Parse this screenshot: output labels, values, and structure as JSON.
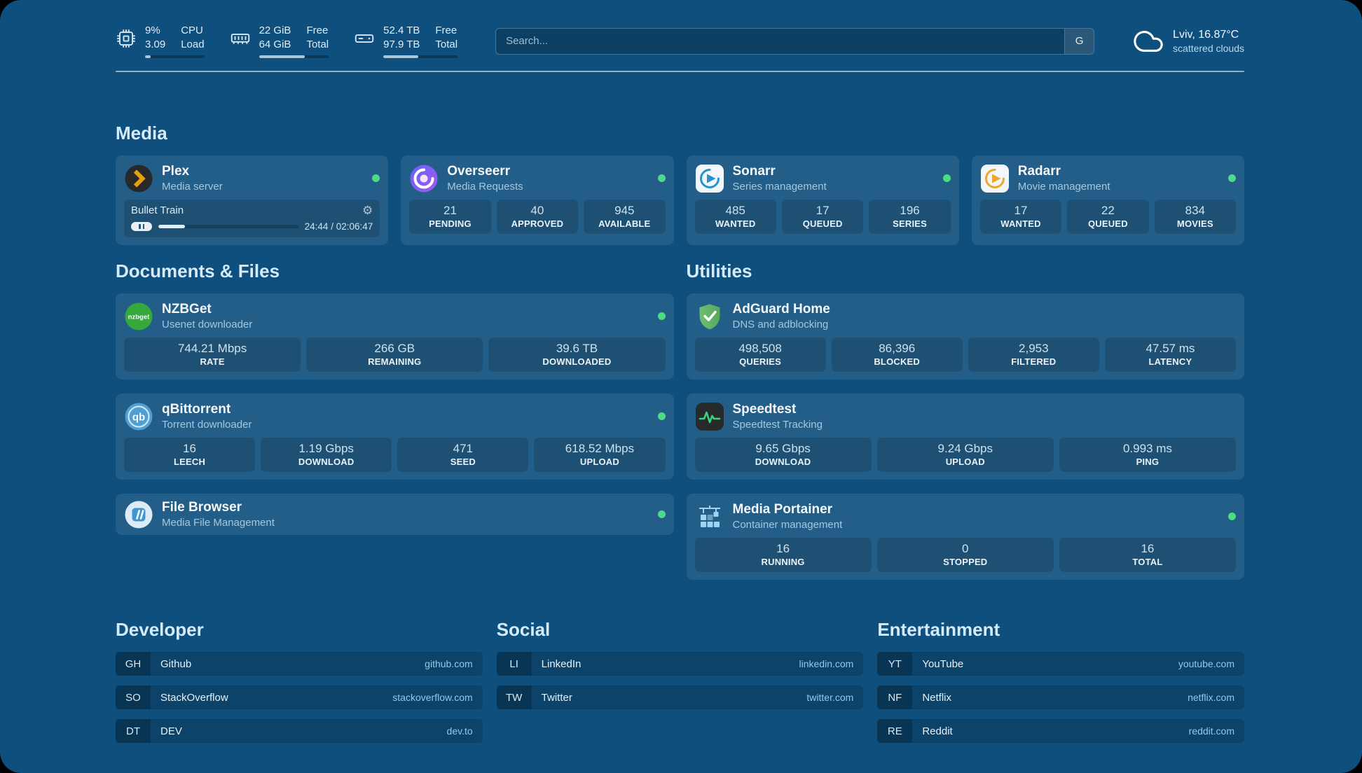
{
  "icons": {
    "gear_glyph": "⚙"
  },
  "colors": {
    "status_online": "#4ade80",
    "background": "#0f4f7d"
  },
  "header": {
    "resources": [
      {
        "rows": [
          {
            "value": "9%",
            "label": "CPU"
          },
          {
            "value": "3.09",
            "label": "Load"
          }
        ],
        "progress": 9
      },
      {
        "rows": [
          {
            "value": "22 GiB",
            "label": "Free"
          },
          {
            "value": "64 GiB",
            "label": "Total"
          }
        ],
        "progress": 66
      },
      {
        "rows": [
          {
            "value": "52.4 TB",
            "label": "Free"
          },
          {
            "value": "97.9 TB",
            "label": "Total"
          }
        ],
        "progress": 47
      }
    ],
    "search": {
      "placeholder": "Search...",
      "button_label": "G"
    },
    "weather": {
      "location": "Lviv, 16.87°C",
      "condition": "scattered clouds"
    }
  },
  "sections": {
    "media": {
      "title": "Media",
      "plex": {
        "name": "Plex",
        "subtitle": "Media server",
        "now_playing": {
          "title": "Bullet Train",
          "time": "24:44 / 02:06:47",
          "progress": 19
        }
      },
      "overseerr": {
        "name": "Overseerr",
        "subtitle": "Media Requests",
        "stats": [
          {
            "value": "21",
            "label": "PENDING"
          },
          {
            "value": "40",
            "label": "APPROVED"
          },
          {
            "value": "945",
            "label": "AVAILABLE"
          }
        ]
      },
      "sonarr": {
        "name": "Sonarr",
        "subtitle": "Series management",
        "stats": [
          {
            "value": "485",
            "label": "WANTED"
          },
          {
            "value": "17",
            "label": "QUEUED"
          },
          {
            "value": "196",
            "label": "SERIES"
          }
        ]
      },
      "radarr": {
        "name": "Radarr",
        "subtitle": "Movie management",
        "stats": [
          {
            "value": "17",
            "label": "WANTED"
          },
          {
            "value": "22",
            "label": "QUEUED"
          },
          {
            "value": "834",
            "label": "MOVIES"
          }
        ]
      }
    },
    "documents": {
      "title": "Documents & Files",
      "nzbget": {
        "name": "NZBGet",
        "subtitle": "Usenet downloader",
        "stats": [
          {
            "value": "744.21 Mbps",
            "label": "RATE"
          },
          {
            "value": "266 GB",
            "label": "REMAINING"
          },
          {
            "value": "39.6 TB",
            "label": "DOWNLOADED"
          }
        ]
      },
      "qbittorrent": {
        "name": "qBittorrent",
        "subtitle": "Torrent downloader",
        "stats": [
          {
            "value": "16",
            "label": "LEECH"
          },
          {
            "value": "1.19 Gbps",
            "label": "DOWNLOAD"
          },
          {
            "value": "471",
            "label": "SEED"
          },
          {
            "value": "618.52 Mbps",
            "label": "UPLOAD"
          }
        ]
      },
      "filebrowser": {
        "name": "File Browser",
        "subtitle": "Media File Management"
      }
    },
    "utilities": {
      "title": "Utilities",
      "adguard": {
        "name": "AdGuard Home",
        "subtitle": "DNS and adblocking",
        "stats": [
          {
            "value": "498,508",
            "label": "QUERIES"
          },
          {
            "value": "86,396",
            "label": "BLOCKED"
          },
          {
            "value": "2,953",
            "label": "FILTERED"
          },
          {
            "value": "47.57 ms",
            "label": "LATENCY"
          }
        ]
      },
      "speedtest": {
        "name": "Speedtest",
        "subtitle": "Speedtest Tracking",
        "stats": [
          {
            "value": "9.65 Gbps",
            "label": "DOWNLOAD"
          },
          {
            "value": "9.24 Gbps",
            "label": "UPLOAD"
          },
          {
            "value": "0.993 ms",
            "label": "PING"
          }
        ]
      },
      "portainer": {
        "name": "Media Portainer",
        "subtitle": "Container management",
        "stats": [
          {
            "value": "16",
            "label": "RUNNING"
          },
          {
            "value": "0",
            "label": "STOPPED"
          },
          {
            "value": "16",
            "label": "TOTAL"
          }
        ]
      }
    }
  },
  "bookmarks": [
    {
      "title": "Developer",
      "items": [
        {
          "abbr": "GH",
          "name": "Github",
          "domain": "github.com"
        },
        {
          "abbr": "SO",
          "name": "StackOverflow",
          "domain": "stackoverflow.com"
        },
        {
          "abbr": "DT",
          "name": "DEV",
          "domain": "dev.to"
        }
      ]
    },
    {
      "title": "Social",
      "items": [
        {
          "abbr": "LI",
          "name": "LinkedIn",
          "domain": "linkedin.com"
        },
        {
          "abbr": "TW",
          "name": "Twitter",
          "domain": "twitter.com"
        }
      ]
    },
    {
      "title": "Entertainment",
      "items": [
        {
          "abbr": "YT",
          "name": "YouTube",
          "domain": "youtube.com"
        },
        {
          "abbr": "NF",
          "name": "Netflix",
          "domain": "netflix.com"
        },
        {
          "abbr": "RE",
          "name": "Reddit",
          "domain": "reddit.com"
        }
      ]
    }
  ]
}
